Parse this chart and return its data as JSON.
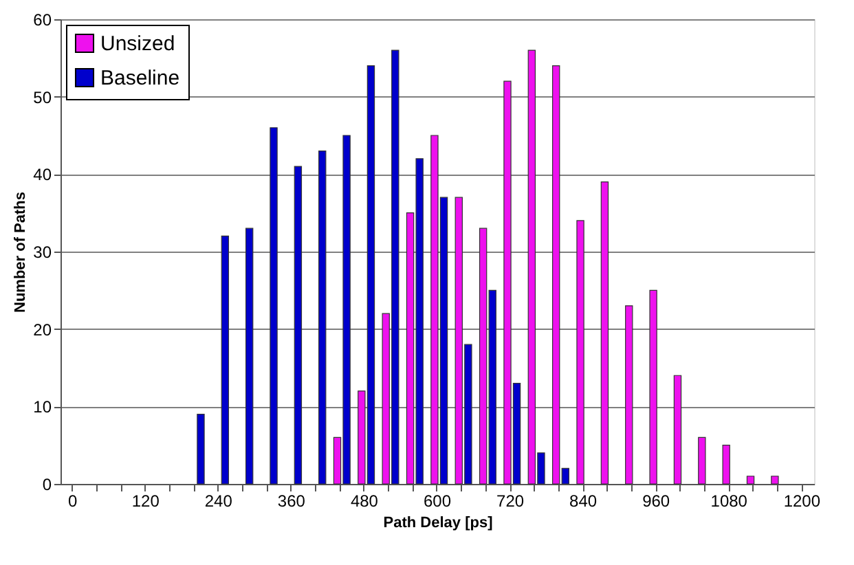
{
  "chart_data": {
    "type": "bar",
    "xlabel": "Path Delay [ps]",
    "ylabel": "Number of Paths",
    "categories": [
      "0",
      null,
      null,
      "120",
      null,
      null,
      "240",
      null,
      null,
      "360",
      null,
      null,
      "480",
      null,
      null,
      "600",
      null,
      null,
      "720",
      null,
      null,
      "840",
      null,
      null,
      "960",
      null,
      null,
      "1080",
      null,
      null,
      "1200"
    ],
    "series": [
      {
        "name": "Unsized",
        "color": "#ee11ee",
        "values": [
          null,
          null,
          null,
          null,
          null,
          null,
          null,
          null,
          null,
          null,
          null,
          6,
          12,
          22,
          35,
          45,
          37,
          33,
          52,
          56,
          54,
          34,
          39,
          23,
          25,
          14,
          6,
          5,
          1,
          1,
          null
        ]
      },
      {
        "name": "Baseline",
        "color": "#0000cc",
        "values": [
          null,
          null,
          null,
          null,
          null,
          9,
          32,
          33,
          46,
          41,
          43,
          45,
          54,
          56,
          42,
          37,
          18,
          25,
          13,
          4,
          2,
          null,
          null,
          null,
          null,
          null,
          null,
          null,
          null,
          null,
          null
        ]
      }
    ],
    "ylim": [
      0,
      60
    ],
    "yticks": [
      0,
      10,
      20,
      30,
      40,
      50,
      60
    ],
    "grid": "y",
    "legend": "top left"
  }
}
